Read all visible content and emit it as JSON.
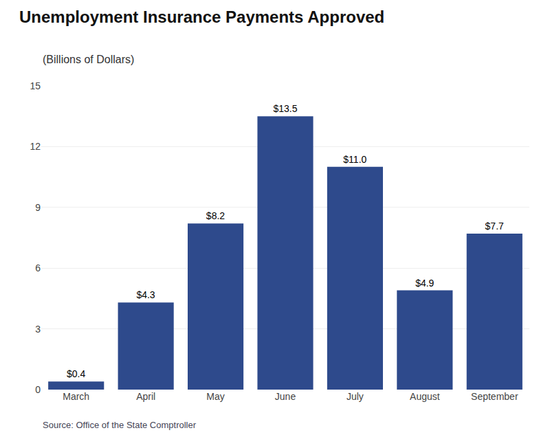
{
  "chart_data": {
    "type": "bar",
    "title": "Unemployment Insurance Payments Approved",
    "subtitle": "(Billions of Dollars)",
    "source": "Source: Office of the State Comptroller",
    "categories": [
      "March",
      "April",
      "May",
      "June",
      "July",
      "August",
      "September"
    ],
    "values": [
      0.4,
      4.3,
      8.2,
      13.5,
      11.0,
      4.9,
      7.7
    ],
    "value_labels": [
      "$0.4",
      "$4.3",
      "$8.2",
      "$13.5",
      "$11.0",
      "$4.9",
      "$7.7"
    ],
    "data_labels": true,
    "color": "#2e4a8c",
    "ylim": [
      0,
      15
    ],
    "yticks": [
      0,
      3,
      6,
      9,
      12,
      15
    ],
    "grid": true
  }
}
